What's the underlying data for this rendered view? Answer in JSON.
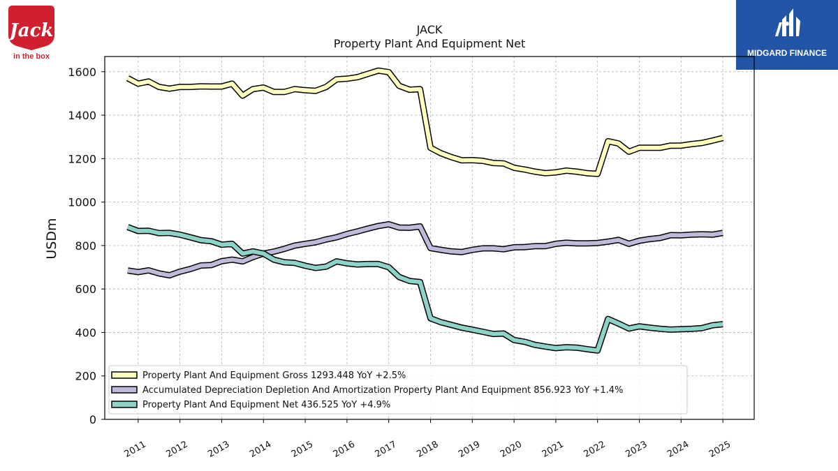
{
  "logos": {
    "left_brand_word": "Jack",
    "left_brand_sub": "in the box",
    "left_color": "#d0202f",
    "right_brand": "MIDGARD FINANCE",
    "right_color": "#2255a6"
  },
  "chart_data": {
    "type": "line",
    "title": "JACK",
    "subtitle": "Property Plant And Equipment Net",
    "ylabel": "USDm",
    "xlabel": "",
    "xlim": [
      2010.2,
      2025.75
    ],
    "ylim": [
      0,
      1670
    ],
    "yticks": [
      0,
      200,
      400,
      600,
      800,
      1000,
      1200,
      1400,
      1600
    ],
    "xticks": [
      2011,
      2012,
      2013,
      2014,
      2015,
      2016,
      2017,
      2018,
      2019,
      2020,
      2021,
      2022,
      2023,
      2024,
      2025
    ],
    "grid": true,
    "legend_position": "lower-left",
    "series": [
      {
        "name": "Property Plant And Equipment Gross",
        "legend": "Property Plant And Equipment Gross  1293.448 YoY +2.5%",
        "color": "#ffffbf",
        "x": [
          2010.75,
          2011.0,
          2011.25,
          2011.5,
          2011.75,
          2012.0,
          2012.25,
          2012.5,
          2012.75,
          2013.0,
          2013.25,
          2013.5,
          2013.75,
          2014.0,
          2014.25,
          2014.5,
          2014.75,
          2015.0,
          2015.25,
          2015.5,
          2015.75,
          2016.0,
          2016.25,
          2016.5,
          2016.75,
          2017.0,
          2017.25,
          2017.5,
          2017.75,
          2018.0,
          2018.25,
          2018.5,
          2018.75,
          2019.0,
          2019.25,
          2019.5,
          2019.75,
          2020.0,
          2020.25,
          2020.5,
          2020.75,
          2021.0,
          2021.25,
          2021.5,
          2021.75,
          2022.0,
          2022.25,
          2022.5,
          2022.75,
          2023.0,
          2023.25,
          2023.5,
          2023.75,
          2024.0,
          2024.25,
          2024.5,
          2024.75,
          2025.0
        ],
        "y": [
          1570,
          1545,
          1555,
          1530,
          1522,
          1530,
          1530,
          1533,
          1532,
          1532,
          1545,
          1490,
          1520,
          1527,
          1507,
          1507,
          1520,
          1515,
          1512,
          1530,
          1565,
          1568,
          1575,
          1590,
          1605,
          1598,
          1535,
          1517,
          1520,
          1250,
          1225,
          1207,
          1192,
          1193,
          1190,
          1180,
          1178,
          1158,
          1150,
          1140,
          1133,
          1137,
          1145,
          1140,
          1133,
          1130,
          1280,
          1270,
          1232,
          1250,
          1250,
          1250,
          1260,
          1260,
          1267,
          1272,
          1283,
          1295
        ]
      },
      {
        "name": "Accumulated Depreciation Depletion And Amortization Property Plant And Equipment",
        "legend": "Accumulated Depreciation Depletion And Amortization Property Plant And Equipment  856.923 YoY +1.4%",
        "color": "#bebada",
        "x": [
          2010.75,
          2011.0,
          2011.25,
          2011.5,
          2011.75,
          2012.0,
          2012.25,
          2012.5,
          2012.75,
          2013.0,
          2013.25,
          2013.5,
          2013.75,
          2014.0,
          2014.25,
          2014.5,
          2014.75,
          2015.0,
          2015.25,
          2015.5,
          2015.75,
          2016.0,
          2016.25,
          2016.5,
          2016.75,
          2017.0,
          2017.25,
          2017.5,
          2017.75,
          2018.0,
          2018.25,
          2018.5,
          2018.75,
          2019.0,
          2019.25,
          2019.5,
          2019.75,
          2020.0,
          2020.25,
          2020.5,
          2020.75,
          2021.0,
          2021.25,
          2021.5,
          2021.75,
          2022.0,
          2022.25,
          2022.5,
          2022.75,
          2023.0,
          2023.25,
          2023.5,
          2023.75,
          2024.0,
          2024.25,
          2024.5,
          2024.75,
          2025.0
        ],
        "y": [
          685,
          678,
          686,
          672,
          663,
          680,
          692,
          708,
          710,
          728,
          735,
          727,
          747,
          763,
          772,
          785,
          800,
          808,
          815,
          828,
          838,
          853,
          865,
          878,
          890,
          898,
          883,
          882,
          888,
          788,
          780,
          773,
          770,
          780,
          787,
          787,
          783,
          792,
          793,
          797,
          797,
          808,
          813,
          810,
          810,
          812,
          818,
          826,
          808,
          822,
          830,
          835,
          848,
          847,
          850,
          852,
          850,
          858
        ]
      },
      {
        "name": "Property Plant And Equipment Net",
        "legend": "Property Plant And Equipment Net  436.525 YoY +4.9%",
        "color": "#8dd3c7",
        "x": [
          2010.75,
          2011.0,
          2011.25,
          2011.5,
          2011.75,
          2012.0,
          2012.25,
          2012.5,
          2012.75,
          2013.0,
          2013.25,
          2013.5,
          2013.75,
          2014.0,
          2014.25,
          2014.5,
          2014.75,
          2015.0,
          2015.25,
          2015.5,
          2015.75,
          2016.0,
          2016.25,
          2016.5,
          2016.75,
          2017.0,
          2017.25,
          2017.5,
          2017.75,
          2018.0,
          2018.25,
          2018.5,
          2018.75,
          2019.0,
          2019.25,
          2019.5,
          2019.75,
          2020.0,
          2020.25,
          2020.5,
          2020.75,
          2021.0,
          2021.25,
          2021.5,
          2021.75,
          2022.0,
          2022.25,
          2022.5,
          2022.75,
          2023.0,
          2023.25,
          2023.5,
          2023.75,
          2024.0,
          2024.25,
          2024.5,
          2024.75,
          2025.0
        ],
        "y": [
          885,
          867,
          868,
          857,
          858,
          850,
          838,
          825,
          820,
          804,
          808,
          763,
          773,
          763,
          735,
          723,
          720,
          707,
          697,
          703,
          727,
          718,
          713,
          715,
          715,
          700,
          655,
          637,
          632,
          465,
          447,
          435,
          422,
          413,
          403,
          393,
          395,
          365,
          357,
          343,
          335,
          328,
          332,
          330,
          323,
          317,
          462,
          441,
          418,
          428,
          422,
          417,
          413,
          415,
          417,
          420,
          433,
          438
        ]
      }
    ]
  }
}
